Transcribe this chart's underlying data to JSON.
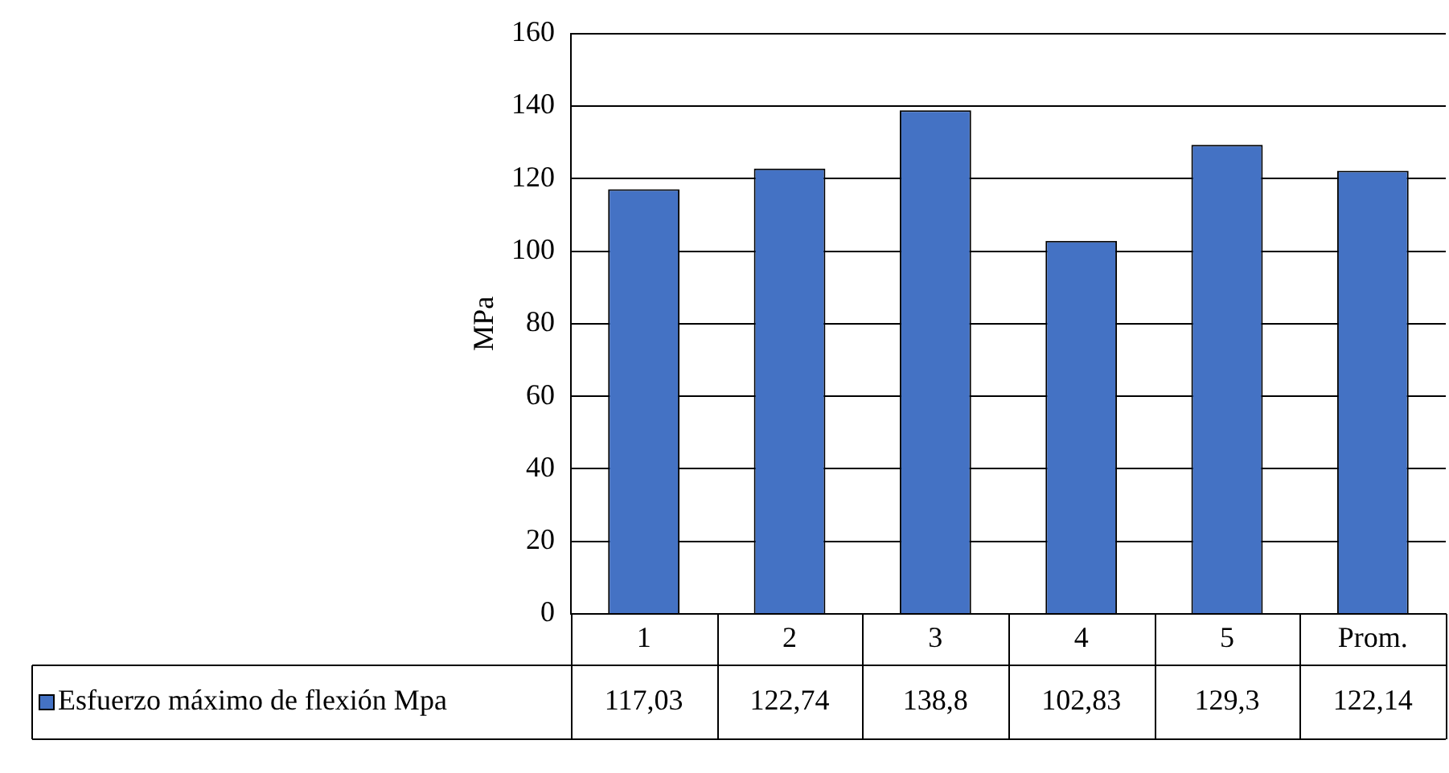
{
  "chart_data": {
    "type": "bar",
    "ylabel": "MPa",
    "categories": [
      "1",
      "2",
      "3",
      "4",
      "5",
      "Prom."
    ],
    "series": [
      {
        "name": "Esfuerzo máximo de flexión Mpa",
        "color": "#4472c4",
        "values": [
          117.03,
          122.74,
          138.8,
          102.83,
          129.3,
          122.14
        ],
        "value_labels": [
          "117,03",
          "122,74",
          "138,8",
          "102,83",
          "129,3",
          "122,14"
        ]
      }
    ],
    "ylim": [
      0,
      160
    ],
    "yticks": [
      0,
      20,
      40,
      60,
      80,
      100,
      120,
      140,
      160
    ],
    "grid": "y",
    "legend": "bottom left"
  }
}
